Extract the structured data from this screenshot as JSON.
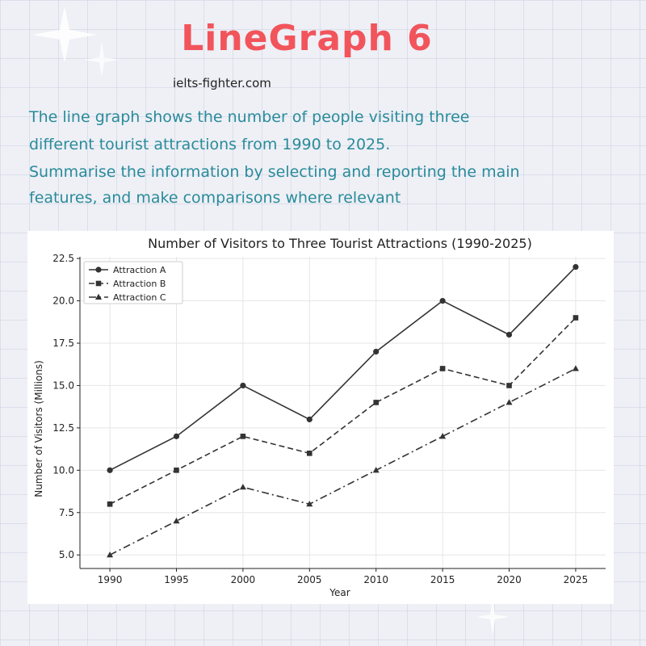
{
  "header": {
    "title": "LineGraph 6",
    "site": "ielts-fighter.com"
  },
  "prompt": {
    "lines": [
      "The line graph shows the number of people visiting three",
      "different tourist attractions from 1990 to 2025.",
      "Summarise the information by selecting and reporting the main",
      "features, and make comparisons where relevant"
    ]
  },
  "colors": {
    "title": "#f2545b",
    "prompt_text": "#2a8b9a",
    "series_line": "#333333"
  },
  "chart_data": {
    "type": "line",
    "title": "Number of Visitors to Three Tourist Attractions (1990-2025)",
    "xlabel": "Year",
    "ylabel": "Number of Visitors (Millions)",
    "x": [
      1990,
      1995,
      2000,
      2005,
      2010,
      2015,
      2020,
      2025
    ],
    "ylim": [
      4.2,
      22.6
    ],
    "yticks": [
      "5.0",
      "7.5",
      "10.0",
      "12.5",
      "15.0",
      "17.5",
      "20.0",
      "22.5"
    ],
    "grid": true,
    "legend_position": "top-left",
    "series": [
      {
        "name": "Attraction A",
        "values": [
          10,
          12,
          15,
          13,
          17,
          20,
          18,
          22
        ],
        "line_style": "solid",
        "marker": "circle"
      },
      {
        "name": "Attraction B",
        "values": [
          8,
          10,
          12,
          11,
          14,
          16,
          15,
          19
        ],
        "line_style": "dashed",
        "marker": "square"
      },
      {
        "name": "Attraction C",
        "values": [
          5,
          7,
          9,
          8,
          10,
          12,
          14,
          16
        ],
        "line_style": "dashdot",
        "marker": "triangle"
      }
    ]
  }
}
